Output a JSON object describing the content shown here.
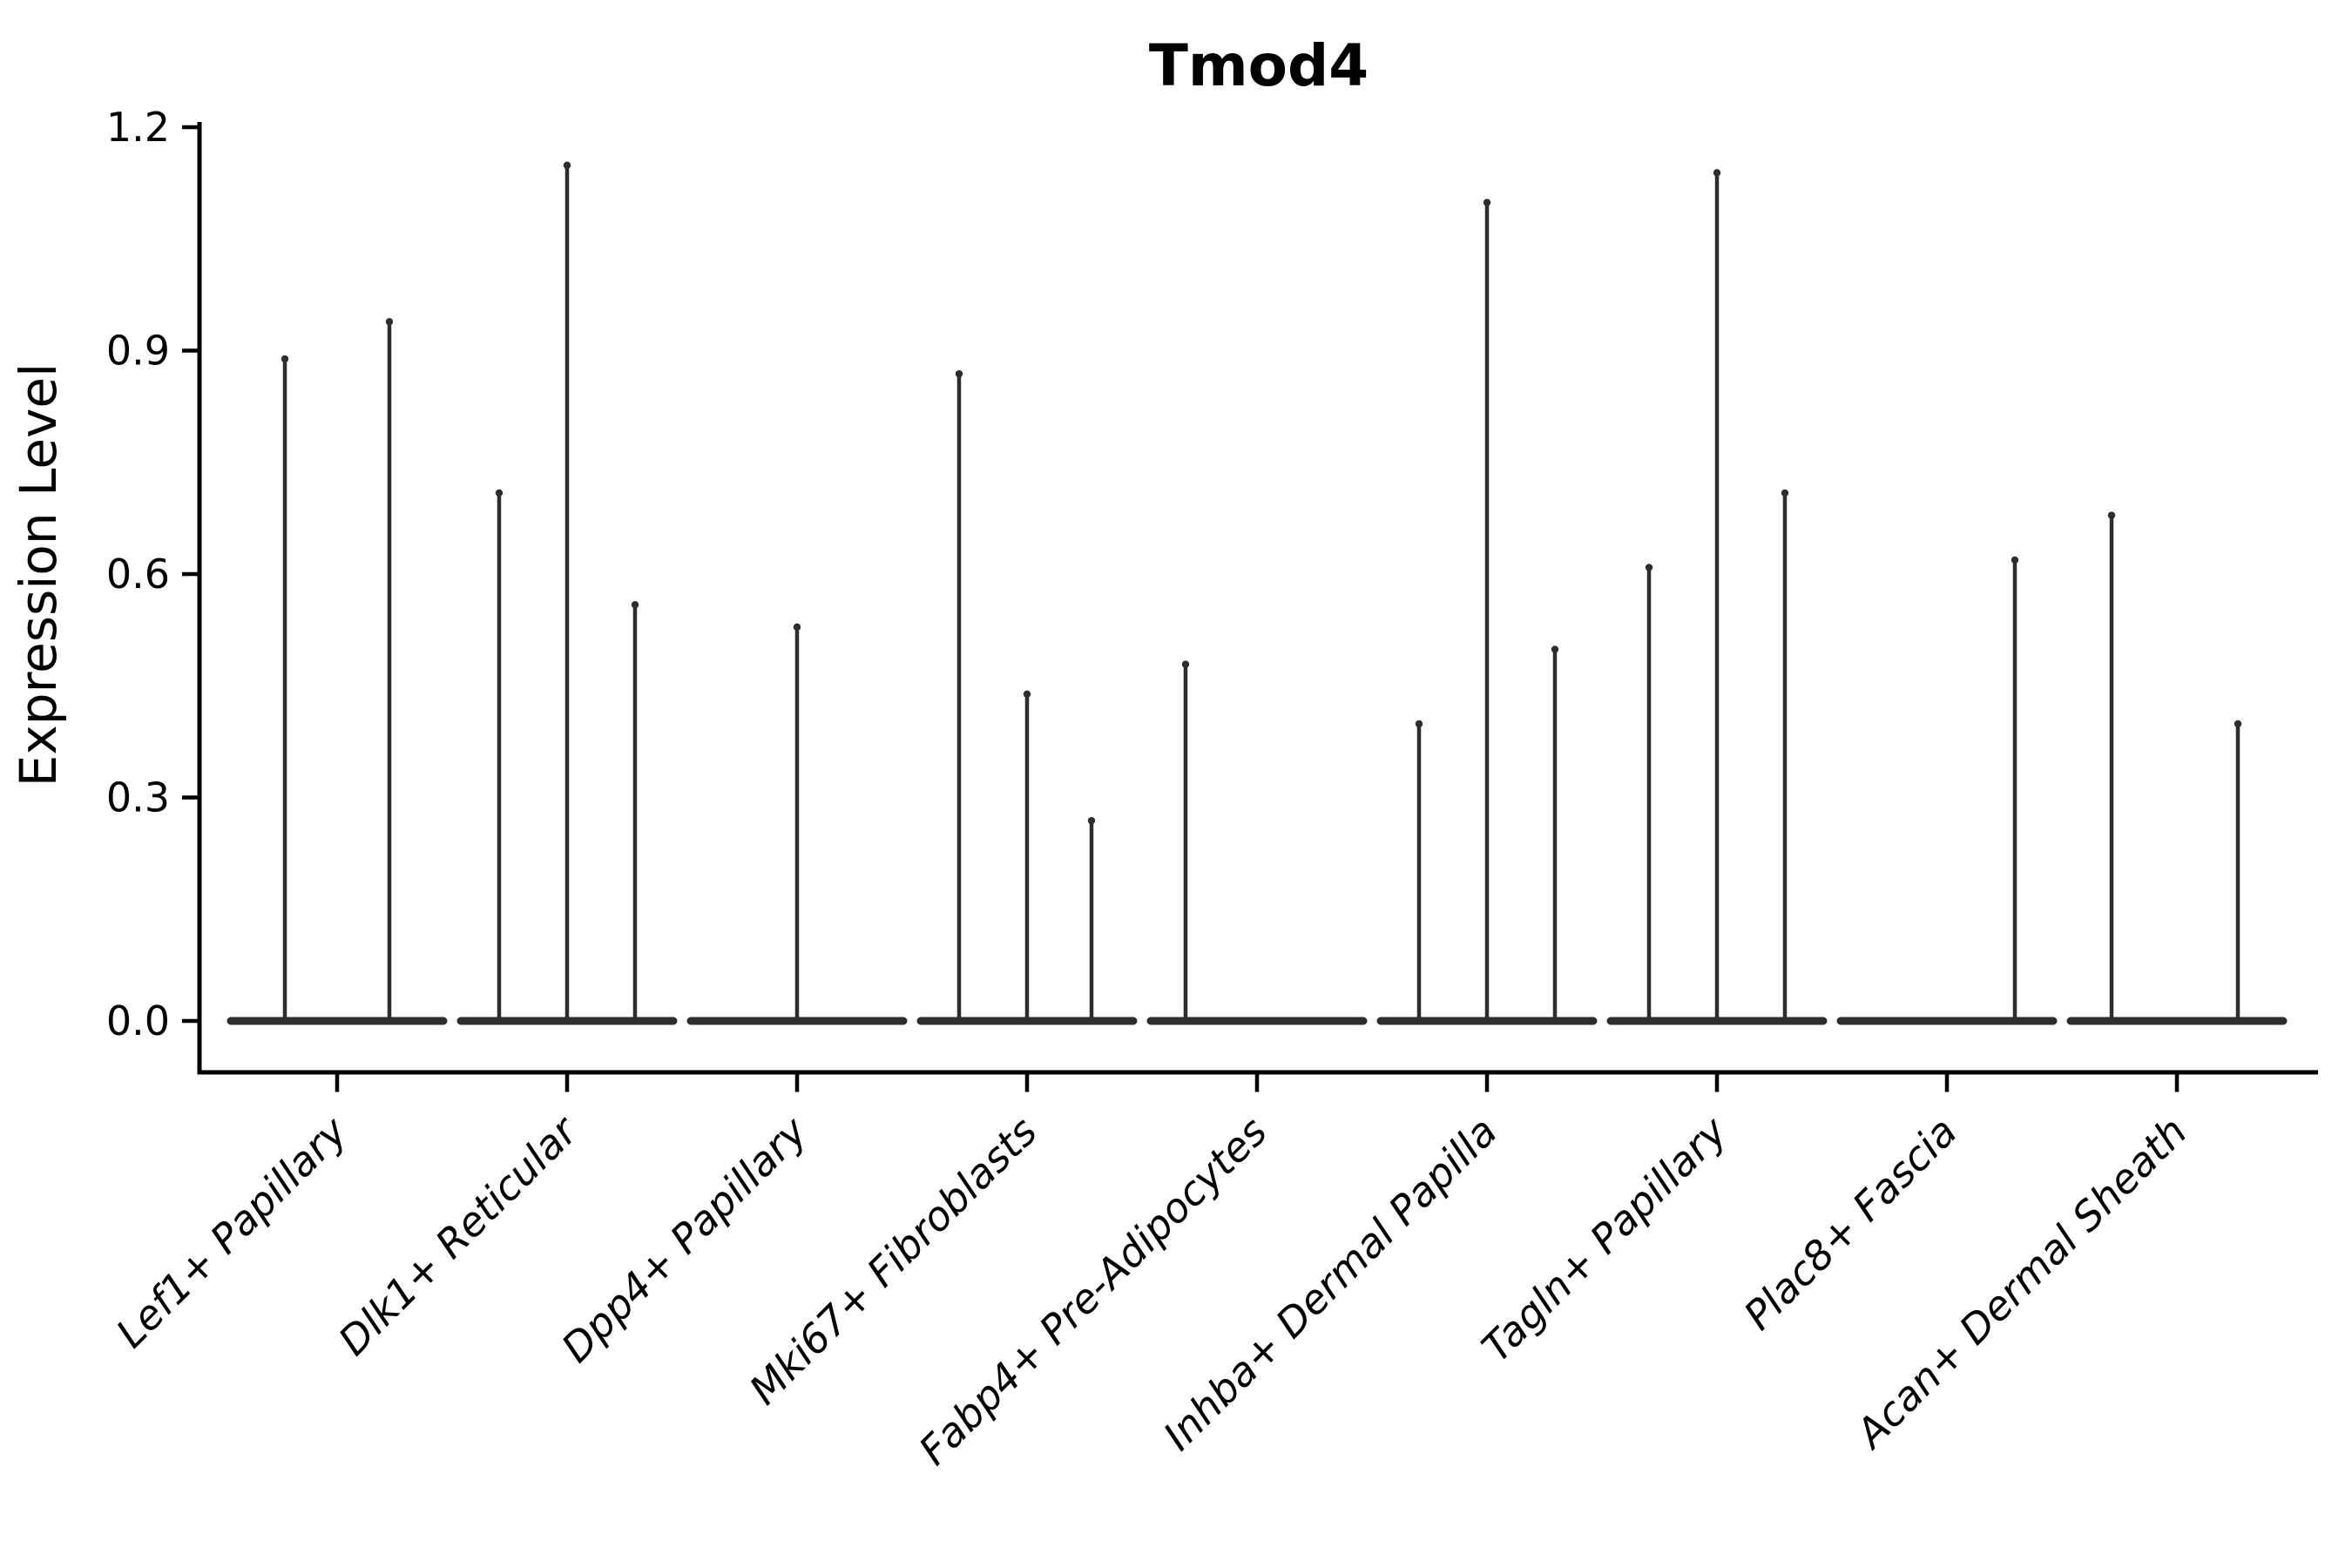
{
  "title": "Tmod4",
  "ylabel": "Expression Level",
  "colors": {
    "violin_line": "#2d2d2d",
    "axis": "#000000",
    "text": "#000000",
    "background": "#ffffff"
  },
  "y_axis": {
    "tick_labels": [
      "0.0",
      "0.3",
      "0.6",
      "0.9",
      "1.2"
    ],
    "tick_values": [
      0.0,
      0.3,
      0.6,
      0.9,
      1.2
    ]
  },
  "chart_data": {
    "type": "violin",
    "title": "Tmod4",
    "xlabel": "",
    "ylabel": "Expression Level",
    "ylim": [
      0.0,
      1.2
    ],
    "yticks": [
      0.0,
      0.3,
      0.6,
      0.9,
      1.2
    ],
    "grid": false,
    "legend": "none",
    "x_tick_rotation_deg": 45,
    "categories": [
      "Lef1+ Papillary",
      "Dlk1+ Reticular",
      "Dpp4+ Papillary",
      "Mki67+ Fibroblasts",
      "Fabp4+ Pre-Adipocytes",
      "Inhba+ Dermal Papilla",
      "Tagln+ Papillary",
      "Plac8+ Fascia",
      "Acan+ Dermal Sheath"
    ],
    "series": [
      {
        "category": "Lef1+ Papillary",
        "baseline_value": 0.0,
        "spikes": [
          {
            "offset": -60,
            "value": 0.89
          },
          {
            "offset": 60,
            "value": 0.94
          }
        ]
      },
      {
        "category": "Dlk1+ Reticular",
        "baseline_value": 0.0,
        "spikes": [
          {
            "offset": -78,
            "value": 0.71
          },
          {
            "offset": 0,
            "value": 1.15
          },
          {
            "offset": 78,
            "value": 0.56
          }
        ]
      },
      {
        "category": "Dpp4+ Papillary",
        "baseline_value": 0.0,
        "spikes": [
          {
            "offset": 0,
            "value": 0.53
          }
        ]
      },
      {
        "category": "Mki67+ Fibroblasts",
        "baseline_value": 0.0,
        "spikes": [
          {
            "offset": -78,
            "value": 0.87
          },
          {
            "offset": 0,
            "value": 0.44
          },
          {
            "offset": 74,
            "value": 0.27
          }
        ]
      },
      {
        "category": "Fabp4+ Pre-Adipocytes",
        "baseline_value": 0.0,
        "spikes": [
          {
            "offset": -82,
            "value": 0.48
          }
        ]
      },
      {
        "category": "Inhba+ Dermal Papilla",
        "baseline_value": 0.0,
        "spikes": [
          {
            "offset": -78,
            "value": 0.4
          },
          {
            "offset": 0,
            "value": 1.1
          },
          {
            "offset": 78,
            "value": 0.5
          }
        ]
      },
      {
        "category": "Tagln+ Papillary",
        "baseline_value": 0.0,
        "spikes": [
          {
            "offset": -78,
            "value": 0.61
          },
          {
            "offset": 0,
            "value": 1.14
          },
          {
            "offset": 78,
            "value": 0.71
          }
        ]
      },
      {
        "category": "Plac8+ Fascia",
        "baseline_value": 0.0,
        "spikes": [
          {
            "offset": 78,
            "value": 0.62
          }
        ]
      },
      {
        "category": "Acan+ Dermal Sheath",
        "baseline_value": 0.0,
        "spikes": [
          {
            "offset": -75,
            "value": 0.68
          },
          {
            "offset": 70,
            "value": 0.4
          }
        ]
      }
    ]
  }
}
